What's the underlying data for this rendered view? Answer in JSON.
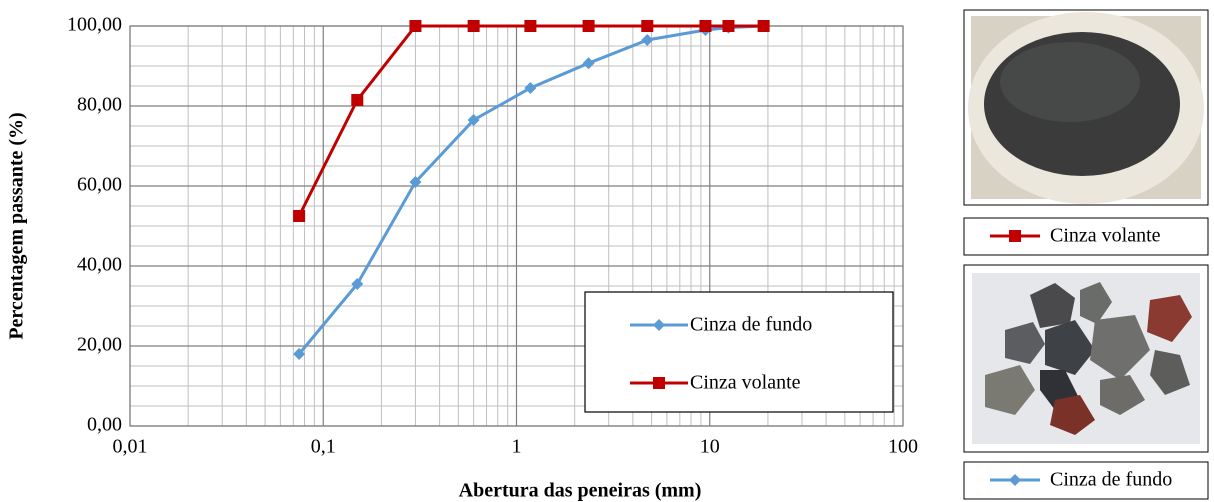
{
  "chart_data": {
    "type": "line",
    "xlabel": "Abertura das peneiras (mm)",
    "ylabel": "Percentagem passante (%)",
    "x": [
      0.075,
      0.15,
      0.3,
      0.6,
      1.18,
      2.36,
      4.75,
      9.5,
      12.5,
      19
    ],
    "series": [
      {
        "name": "Cinza de fundo",
        "color": "#5b9bd5",
        "marker": "diamond",
        "values": [
          18,
          35.5,
          61,
          76.5,
          84.5,
          90.7,
          96.5,
          99,
          99.6,
          100
        ]
      },
      {
        "name": "Cinza volante",
        "color": "#c00000",
        "marker": "square",
        "values": [
          52.5,
          81.5,
          100,
          100,
          100,
          100,
          100,
          100,
          100,
          100
        ]
      }
    ],
    "xscale": "log",
    "xlim": [
      0.01,
      100
    ],
    "xticks": [
      {
        "value": 0.01,
        "label": "0,01"
      },
      {
        "value": 0.1,
        "label": "0,1"
      },
      1,
      10,
      100
    ],
    "ylim": [
      0,
      100
    ],
    "yticks": [
      {
        "value": 0,
        "label": "0,00"
      },
      {
        "value": 20,
        "label": "20,00"
      },
      {
        "value": 40,
        "label": "40,00"
      },
      {
        "value": 60,
        "label": "60,00"
      },
      {
        "value": 80,
        "label": "80,00"
      },
      {
        "value": 100,
        "label": "100,00"
      }
    ],
    "grid": true,
    "minor_grid": true,
    "legend": "lower right"
  }
}
